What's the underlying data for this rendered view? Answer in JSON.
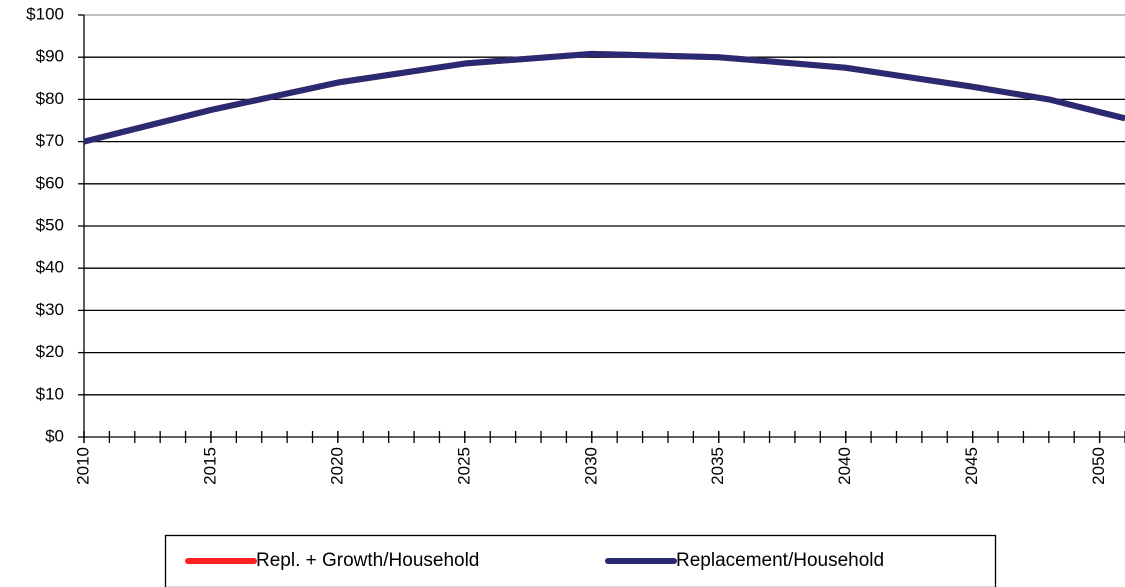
{
  "chart_data": {
    "type": "line",
    "x": [
      2010,
      2015,
      2020,
      2025,
      2030,
      2035,
      2040,
      2045,
      2048,
      2050,
      2051
    ],
    "series": [
      {
        "name": "Repl. + Growth/Household",
        "color": "#ff2020",
        "values": [
          70,
          77.5,
          84,
          88.5,
          90.8,
          90,
          87.5,
          83,
          80,
          77,
          75.5
        ]
      },
      {
        "name": "Replacement/Household",
        "color": "#2a2a72",
        "values": [
          70,
          77.5,
          84,
          88.5,
          90.8,
          90,
          87.5,
          83,
          80,
          77,
          75.5
        ]
      }
    ],
    "xlim": [
      2010,
      2051
    ],
    "xticks": [
      2010,
      2015,
      2020,
      2025,
      2030,
      2035,
      2040,
      2045,
      2050
    ],
    "ylim": [
      0,
      100
    ],
    "yticks": [
      {
        "value": 0,
        "label": "$0"
      },
      {
        "value": 10,
        "label": "$10"
      },
      {
        "value": 20,
        "label": "$20"
      },
      {
        "value": 30,
        "label": "$30"
      },
      {
        "value": 40,
        "label": "$40"
      },
      {
        "value": 50,
        "label": "$50"
      },
      {
        "value": 60,
        "label": "$60"
      },
      {
        "value": 70,
        "label": "$70"
      },
      {
        "value": 80,
        "label": "$80"
      },
      {
        "value": 90,
        "label": "$90"
      },
      {
        "value": 100,
        "label": "$100"
      }
    ],
    "grid": true,
    "legend": "bottom"
  }
}
